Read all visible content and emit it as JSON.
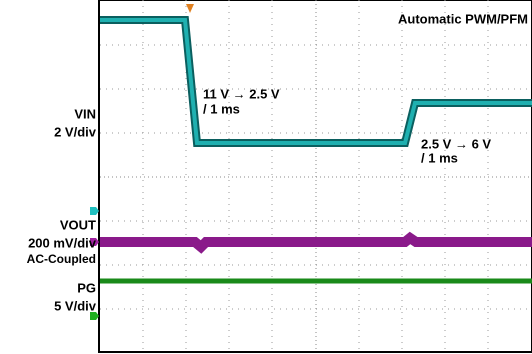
{
  "mode_label": "Automatic PWM/PFM",
  "annotations": [
    {
      "line1": "11 V → 2.5 V",
      "line2": "/ 1 ms"
    },
    {
      "line1": "2.5 V → 6 V",
      "line2": "/ 1 ms"
    }
  ],
  "channels": [
    {
      "name": "VIN",
      "scale": "2 V/div"
    },
    {
      "name": "VOUT",
      "scale": "200 mV/div",
      "coupling": "AC-Coupled"
    },
    {
      "name": "PG",
      "scale": "5 V/div"
    }
  ]
}
